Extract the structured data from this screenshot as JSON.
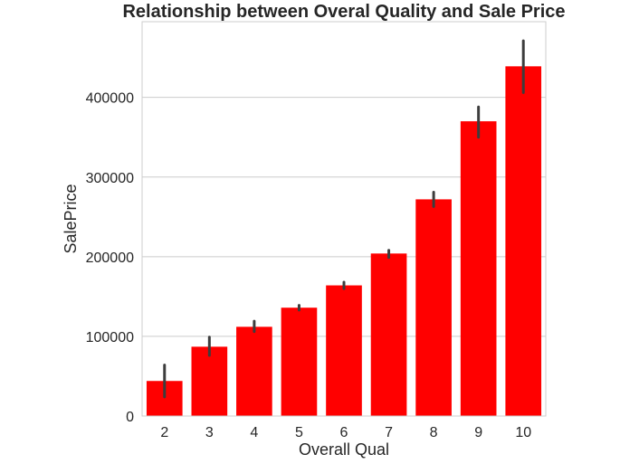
{
  "chart_data": {
    "type": "bar",
    "title": "Relationship between Overal Quality and Sale Price",
    "xlabel": "Overall Qual",
    "ylabel": "SalePrice",
    "categories": [
      "2",
      "3",
      "4",
      "5",
      "6",
      "7",
      "8",
      "9",
      "10"
    ],
    "values": [
      44000,
      87000,
      112000,
      136000,
      164000,
      204000,
      272000,
      370000,
      439000
    ],
    "error_low": [
      24000,
      76000,
      106000,
      133000,
      160000,
      199000,
      263000,
      350000,
      406000
    ],
    "error_high": [
      64000,
      99000,
      119000,
      139000,
      168000,
      208000,
      281000,
      388000,
      471000
    ],
    "ylim": [
      0,
      495000
    ],
    "yticks": [
      0,
      100000,
      200000,
      300000,
      400000
    ],
    "ytick_labels": [
      "0",
      "100000",
      "200000",
      "300000",
      "400000"
    ],
    "grid": true,
    "bar_color": "#ff0000",
    "error_color": "#3d3d3d",
    "grid_color": "#cccccc",
    "spine_color": "#cccccc"
  }
}
